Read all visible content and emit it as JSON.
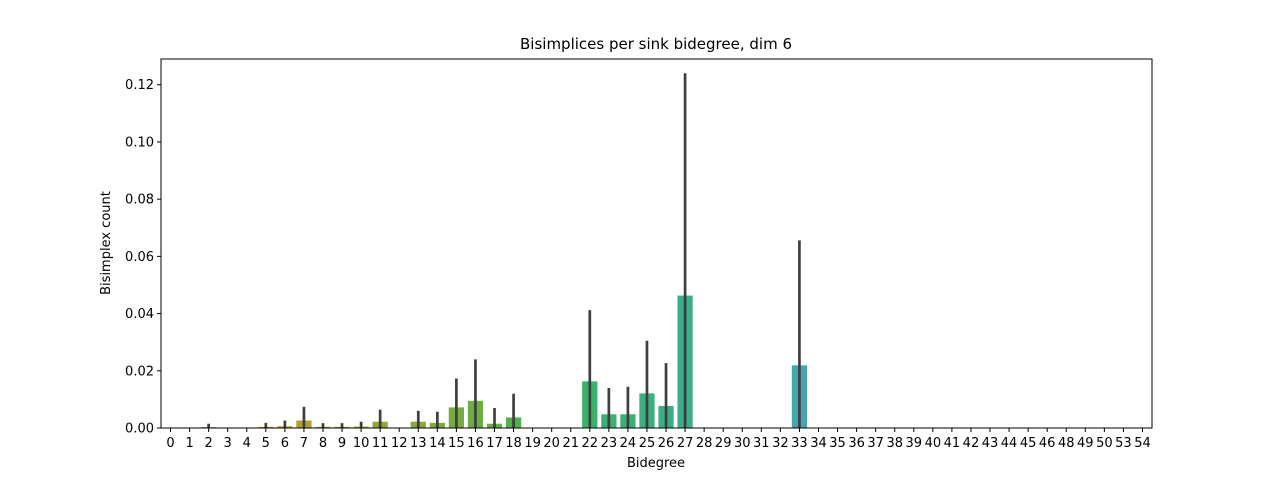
{
  "chart_data": {
    "type": "bar",
    "title": "Bisimplices per sink bidegree, dim 6",
    "xlabel": "Bidegree",
    "ylabel": "Bisimplex count",
    "ylim": [
      0,
      0.129
    ],
    "yticks": [
      0.0,
      0.02,
      0.04,
      0.06,
      0.08,
      0.1,
      0.12
    ],
    "ytick_labels": [
      "0.00",
      "0.02",
      "0.04",
      "0.06",
      "0.08",
      "0.10",
      "0.12"
    ],
    "grid": false,
    "legend": "none",
    "error_bar_color": "#3f3f3f",
    "categories": [
      "0",
      "1",
      "2",
      "3",
      "4",
      "5",
      "6",
      "7",
      "8",
      "9",
      "10",
      "11",
      "12",
      "13",
      "14",
      "15",
      "16",
      "17",
      "18",
      "19",
      "20",
      "21",
      "22",
      "23",
      "24",
      "25",
      "26",
      "27",
      "28",
      "29",
      "30",
      "31",
      "32",
      "33",
      "34",
      "35",
      "36",
      "37",
      "38",
      "39",
      "40",
      "41",
      "42",
      "43",
      "44",
      "45",
      "46",
      "48",
      "49",
      "50",
      "53",
      "54"
    ],
    "values": [
      0,
      0,
      0.0003,
      0,
      0,
      0.0004,
      0.0006,
      0.0026,
      0.0004,
      0.0004,
      0.0005,
      0.0022,
      0,
      0.0022,
      0.0018,
      0.0072,
      0.0095,
      0.0015,
      0.0037,
      0,
      0,
      0,
      0.0163,
      0.0048,
      0.0048,
      0.0121,
      0.0077,
      0.0463,
      0,
      0,
      0,
      0,
      0,
      0.0219,
      0,
      0,
      0,
      0,
      0,
      0,
      0,
      0,
      0,
      0,
      0,
      0,
      0,
      0,
      0,
      0,
      0,
      0
    ],
    "err_low": [
      0,
      0,
      0,
      0,
      0,
      0,
      0,
      0,
      0,
      0,
      0,
      0,
      0,
      0,
      0,
      0,
      0,
      0,
      0,
      0,
      0,
      0,
      0,
      0,
      0,
      0,
      0,
      0,
      0,
      0,
      0,
      0,
      0,
      0,
      0,
      0,
      0,
      0,
      0,
      0,
      0,
      0,
      0,
      0,
      0,
      0,
      0,
      0,
      0,
      0,
      0,
      0
    ],
    "err_high": [
      0,
      0,
      0.0015,
      0,
      0,
      0.0018,
      0.0026,
      0.0074,
      0.0017,
      0.0017,
      0.0022,
      0.0064,
      0,
      0.006,
      0.0057,
      0.0173,
      0.024,
      0.007,
      0.012,
      0,
      0,
      0,
      0.0412,
      0.014,
      0.0144,
      0.0305,
      0.0227,
      0.124,
      0,
      0,
      0,
      0,
      0,
      0.0656,
      0,
      0,
      0,
      0,
      0,
      0,
      0,
      0,
      0,
      0,
      0,
      0,
      0,
      0,
      0,
      0,
      0,
      0
    ],
    "colors": [
      "#e8837d",
      "#e48462",
      "#dc8a48",
      "#d48f3b",
      "#cc9333",
      "#c4962e",
      "#bc9a2c",
      "#b49d2e",
      "#ad9f30",
      "#a5a232",
      "#9ea334",
      "#97a536",
      "#90a738",
      "#88a83a",
      "#80aa3c",
      "#77ab3f",
      "#6dad42",
      "#61ae46",
      "#52b04c",
      "#44b154",
      "#3db25c",
      "#3bb264",
      "#3bb26c",
      "#3bb173",
      "#3bb079",
      "#3baf7f",
      "#3cae85",
      "#3cad8b",
      "#3dac91",
      "#3eab97",
      "#3fa99d",
      "#40a8a3",
      "#42a6a9",
      "#44a4af",
      "#46a2b5",
      "#499fbd",
      "#4d9cc6",
      "#5299d0",
      "#5895da",
      "#6291e3",
      "#6f8ceb",
      "#7e87f0",
      "#8d82f2",
      "#9c7df2",
      "#aa78f0",
      "#b774ec",
      "#c470e5",
      "#cf6ddd",
      "#d86bd3",
      "#df6ac8",
      "#e46bbb",
      "#e76dae"
    ]
  }
}
